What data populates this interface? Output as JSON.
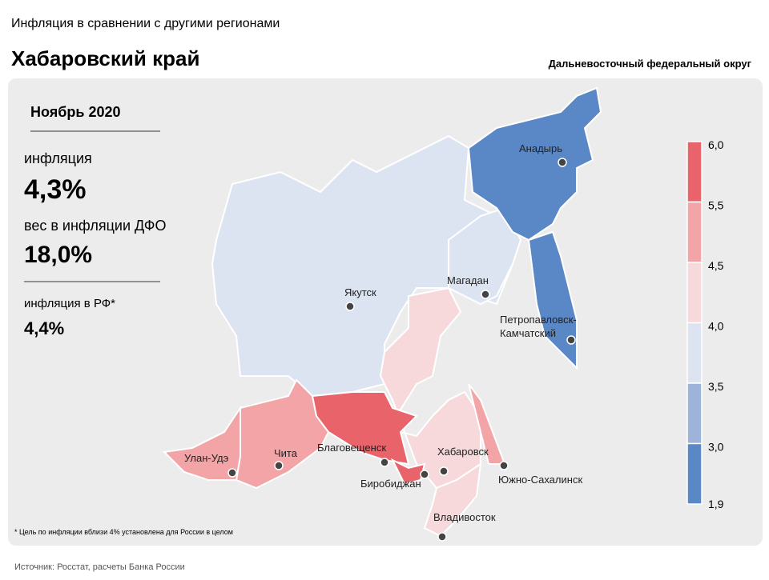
{
  "header": {
    "subtitle": "Инфляция в сравнении с другими регионами",
    "title": "Хабаровский край",
    "district": "Дальневосточный федеральный округ"
  },
  "panel": {
    "period": "Ноябрь 2020",
    "inflation_label": "инфляция",
    "inflation_value": "4,3%",
    "weight_label": "вес в инфляции ДФО",
    "weight_value": "18,0%",
    "rf_label": "инфляция  в РФ*",
    "rf_value": "4,4%",
    "footnote": "* Цель по инфляции вблизи 4% установлена для России в целом"
  },
  "legend": {
    "labels": [
      "6,0",
      "5,5",
      "4,5",
      "4,0",
      "3,5",
      "3,0",
      "1,9"
    ],
    "colors": [
      "#e8636a",
      "#f2a4a6",
      "#f7d9db",
      "#dce4f2",
      "#9db3d9",
      "#5a87c6"
    ]
  },
  "cities": [
    "Анадырь",
    "Магадан",
    "Якутск",
    "Петропавловск- Камчатский",
    "Улан-Удэ",
    "Чита",
    "Благовещенск",
    "Хабаровск",
    "Биробиджан",
    "Южно-Сахалинск",
    "Владивосток"
  ],
  "source": "Источник: Росстат, расчеты Банка России"
}
